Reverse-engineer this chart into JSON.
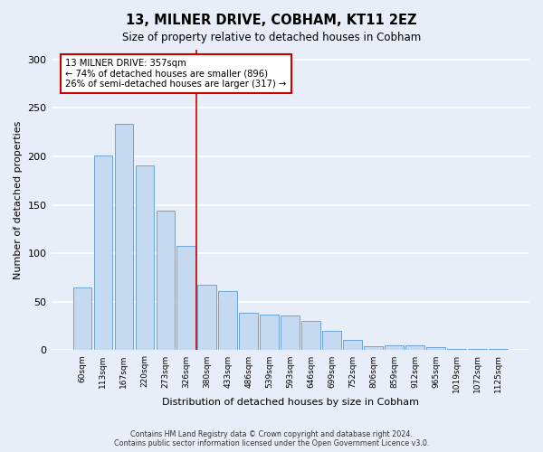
{
  "title1": "13, MILNER DRIVE, COBHAM, KT11 2EZ",
  "title2": "Size of property relative to detached houses in Cobham",
  "xlabel": "Distribution of detached houses by size in Cobham",
  "ylabel": "Number of detached properties",
  "categories": [
    "60sqm",
    "113sqm",
    "167sqm",
    "220sqm",
    "273sqm",
    "326sqm",
    "380sqm",
    "433sqm",
    "486sqm",
    "539sqm",
    "593sqm",
    "646sqm",
    "699sqm",
    "752sqm",
    "806sqm",
    "859sqm",
    "912sqm",
    "965sqm",
    "1019sqm",
    "1072sqm",
    "1125sqm"
  ],
  "values": [
    65,
    201,
    234,
    191,
    144,
    108,
    68,
    61,
    39,
    37,
    36,
    30,
    20,
    11,
    4,
    5,
    5,
    3,
    1,
    1,
    1
  ],
  "bar_color": "#c5d9f0",
  "bar_edge_color": "#5b9bd5",
  "vline_x": 5.5,
  "annotation_text1": "13 MILNER DRIVE: 357sqm",
  "annotation_text2": "← 74% of detached houses are smaller (896)",
  "annotation_text3": "26% of semi-detached houses are larger (317) →",
  "annotation_box_color": "#ffffff",
  "annotation_box_edge": "#cc0000",
  "vline_color": "#cc0000",
  "footer1": "Contains HM Land Registry data © Crown copyright and database right 2024.",
  "footer2": "Contains public sector information licensed under the Open Government Licence v3.0.",
  "ylim": [
    0,
    310
  ],
  "background_color": "#e8eef8",
  "grid_color": "#ffffff"
}
